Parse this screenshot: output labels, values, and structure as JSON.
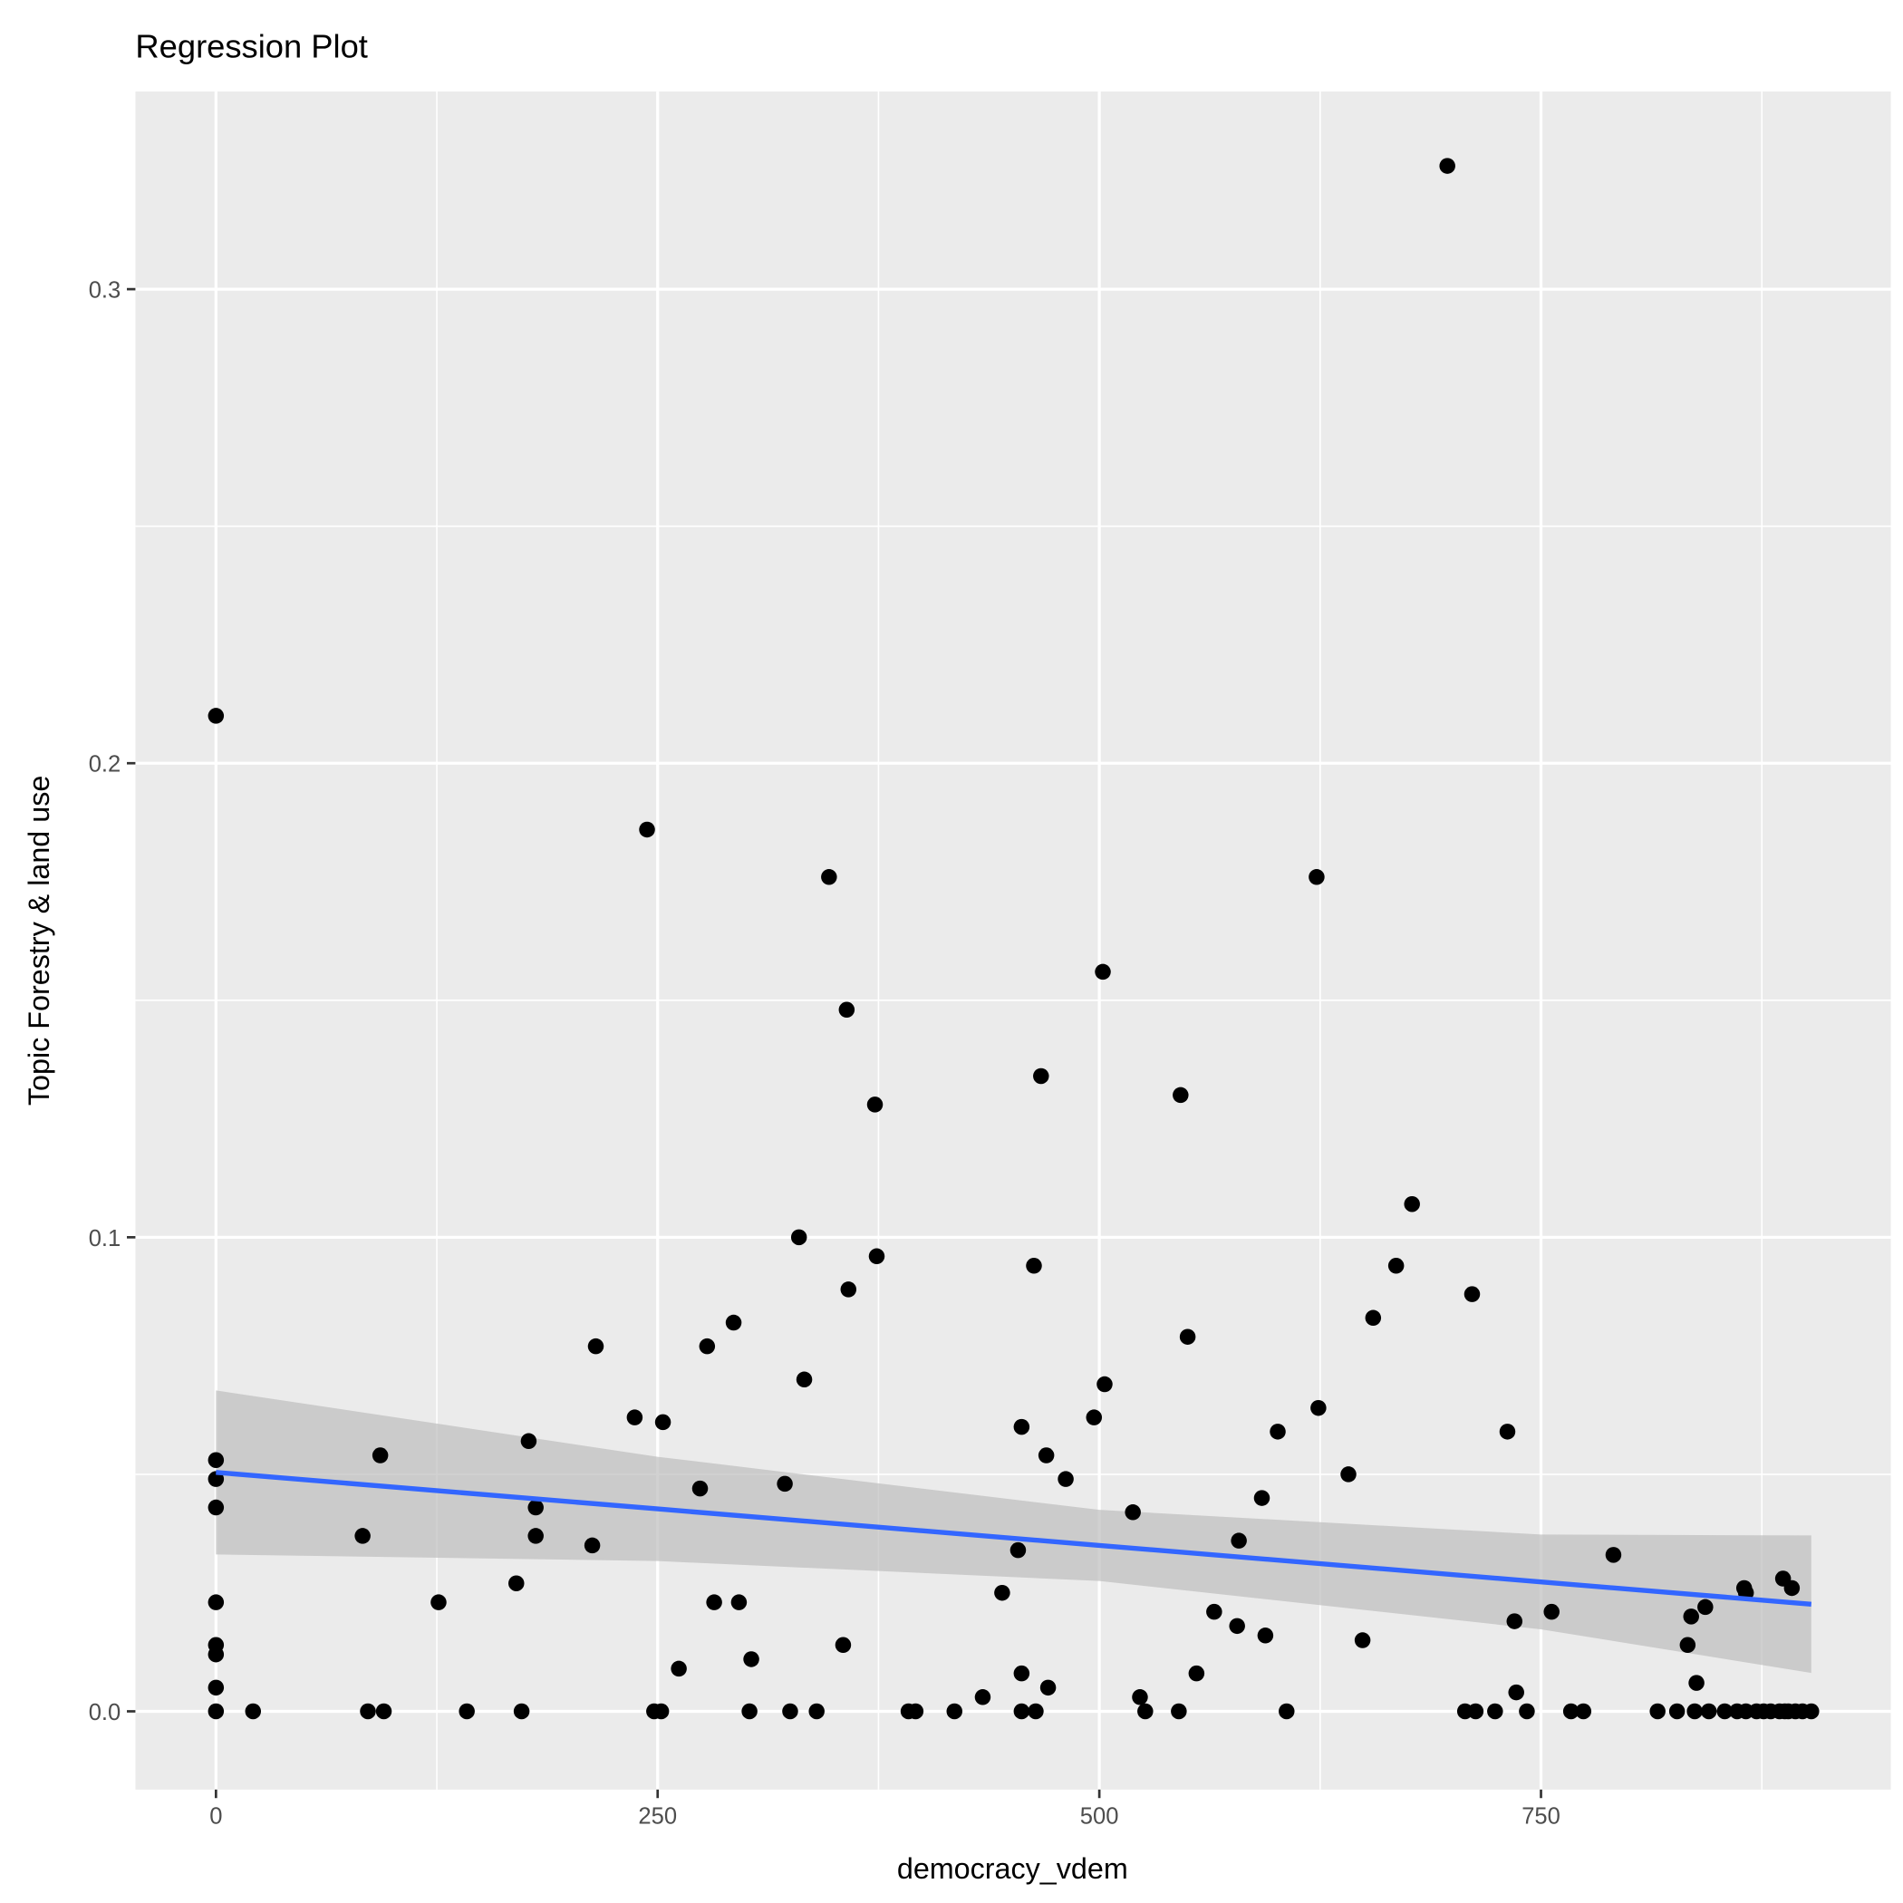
{
  "chart_data": {
    "type": "scatter",
    "title": "Regression Plot",
    "xlabel": "democracy_vdem",
    "ylabel": "Topic Forestry & land use",
    "xlim": [
      -45.6,
      948
    ],
    "ylim": [
      -0.0165,
      0.3417
    ],
    "grid": true,
    "x_ticks": [
      {
        "value": 0,
        "label": "0"
      },
      {
        "value": 250,
        "label": "250"
      },
      {
        "value": 500,
        "label": "500"
      },
      {
        "value": 750,
        "label": "750"
      }
    ],
    "y_ticks": [
      {
        "value": 0,
        "label": "0.0"
      },
      {
        "value": 0.1,
        "label": "0.1"
      },
      {
        "value": 0.2,
        "label": "0.2"
      },
      {
        "value": 0.3,
        "label": "0.3"
      }
    ],
    "colors": {
      "panel": "#EBEBEB",
      "grid": "#FFFFFF",
      "point": "#000000",
      "line": "#3366FF",
      "band": "#BEBEBE"
    },
    "points": [
      [
        0,
        0.21
      ],
      [
        0,
        0.053
      ],
      [
        0,
        0.049
      ],
      [
        0,
        0.043
      ],
      [
        0,
        0.023
      ],
      [
        0,
        0.014
      ],
      [
        0,
        0.012
      ],
      [
        0,
        0.005
      ],
      [
        0,
        0
      ],
      [
        21,
        0
      ],
      [
        83,
        0.037
      ],
      [
        86,
        0
      ],
      [
        93,
        0.054
      ],
      [
        95,
        0
      ],
      [
        126,
        0.023
      ],
      [
        142,
        0
      ],
      [
        170,
        0.027
      ],
      [
        173,
        0
      ],
      [
        177,
        0.057
      ],
      [
        181,
        0.043
      ],
      [
        181,
        0.037
      ],
      [
        213,
        0.035
      ],
      [
        215,
        0.077
      ],
      [
        237,
        0.062
      ],
      [
        244,
        0.186
      ],
      [
        248,
        0
      ],
      [
        252,
        0
      ],
      [
        253,
        0.061
      ],
      [
        262,
        0.009
      ],
      [
        274,
        0.047
      ],
      [
        278,
        0.077
      ],
      [
        282,
        0.023
      ],
      [
        293,
        0.082
      ],
      [
        296,
        0.023
      ],
      [
        302,
        0
      ],
      [
        303,
        0.011
      ],
      [
        322,
        0.048
      ],
      [
        325,
        0
      ],
      [
        330,
        0.1
      ],
      [
        333,
        0.07
      ],
      [
        340,
        0
      ],
      [
        347,
        0.176
      ],
      [
        355,
        0.014
      ],
      [
        357,
        0.148
      ],
      [
        358,
        0.089
      ],
      [
        373,
        0.128
      ],
      [
        374,
        0.096
      ],
      [
        392,
        0
      ],
      [
        396,
        0
      ],
      [
        418,
        0
      ],
      [
        434,
        0.003
      ],
      [
        445,
        0.025
      ],
      [
        454,
        0.034
      ],
      [
        456,
        0
      ],
      [
        456,
        0.008
      ],
      [
        456,
        0.06
      ],
      [
        463,
        0.094
      ],
      [
        464,
        0
      ],
      [
        467,
        0.134
      ],
      [
        470,
        0.054
      ],
      [
        471,
        0.005
      ],
      [
        481,
        0.049
      ],
      [
        497,
        0.062
      ],
      [
        502,
        0.156
      ],
      [
        503,
        0.069
      ],
      [
        519,
        0.042
      ],
      [
        523,
        0.003
      ],
      [
        526,
        0
      ],
      [
        545,
        0
      ],
      [
        546,
        0.13
      ],
      [
        550,
        0.079
      ],
      [
        555,
        0.008
      ],
      [
        565,
        0.021
      ],
      [
        578,
        0.018
      ],
      [
        579,
        0.036
      ],
      [
        592,
        0.045
      ],
      [
        594,
        0.016
      ],
      [
        601,
        0.059
      ],
      [
        606,
        0
      ],
      [
        623,
        0.176
      ],
      [
        624,
        0.064
      ],
      [
        641,
        0.05
      ],
      [
        649,
        0.015
      ],
      [
        655,
        0.083
      ],
      [
        668,
        0.094
      ],
      [
        677,
        0.107
      ],
      [
        697,
        0.326
      ],
      [
        707,
        0
      ],
      [
        711,
        0.088
      ],
      [
        713,
        0
      ],
      [
        724,
        0
      ],
      [
        731,
        0.059
      ],
      [
        735,
        0.019
      ],
      [
        736,
        0.004
      ],
      [
        742,
        0
      ],
      [
        756,
        0.021
      ],
      [
        767,
        0
      ],
      [
        774,
        0
      ],
      [
        791,
        0.033
      ],
      [
        816,
        0
      ],
      [
        827,
        0
      ],
      [
        833,
        0.014
      ],
      [
        835,
        0.02
      ],
      [
        837,
        0
      ],
      [
        838,
        0.006
      ],
      [
        843,
        0.022
      ],
      [
        845,
        0
      ],
      [
        854,
        0
      ],
      [
        861,
        0
      ],
      [
        865,
        0.026
      ],
      [
        866,
        0.025
      ],
      [
        866,
        0
      ],
      [
        872,
        0
      ],
      [
        876,
        0
      ],
      [
        880,
        0
      ],
      [
        885,
        0
      ],
      [
        887,
        0.028
      ],
      [
        888,
        0
      ],
      [
        890,
        0
      ],
      [
        892,
        0.026
      ],
      [
        894,
        0
      ],
      [
        898,
        0
      ],
      [
        903,
        0
      ]
    ],
    "fit": {
      "x": [
        0,
        250,
        500,
        750,
        903
      ],
      "y": [
        0.0504,
        0.0427,
        0.035,
        0.0273,
        0.0226
      ],
      "lower": [
        0.0331,
        0.0317,
        0.0275,
        0.0173,
        0.0081
      ],
      "upper": [
        0.0677,
        0.0537,
        0.0425,
        0.0373,
        0.0371
      ]
    }
  }
}
